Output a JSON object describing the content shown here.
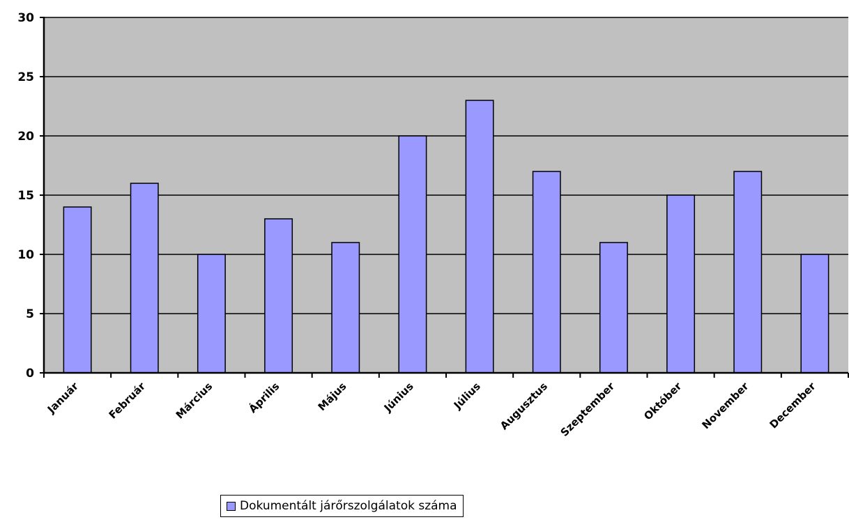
{
  "chart_data": {
    "type": "bar",
    "categories": [
      "Január",
      "Február",
      "Március",
      "Április",
      "Május",
      "Június",
      "Július",
      "Augusztus",
      "Szeptember",
      "Október",
      "November",
      "December"
    ],
    "series": [
      {
        "name": "Dokumentált járőrszolgálatok száma",
        "values": [
          14,
          16,
          10,
          13,
          11,
          20,
          23,
          17,
          11,
          15,
          17,
          10
        ],
        "color": "#9999ff"
      }
    ],
    "title": "",
    "xlabel": "",
    "ylabel": "",
    "ylim": [
      0,
      30
    ],
    "yticks": [
      "0",
      "5",
      "10",
      "15",
      "20",
      "25",
      "30"
    ],
    "grid": true,
    "plot_background": "#c0c0c0",
    "legend_position": "bottom"
  }
}
